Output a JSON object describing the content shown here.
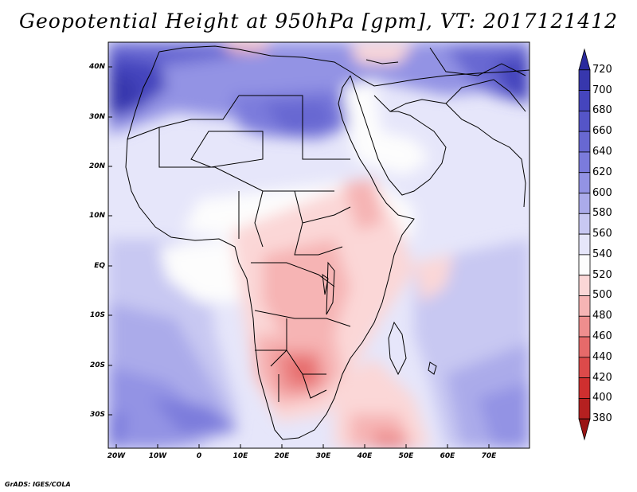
{
  "title": "Geopotential Height at 950hPa [gpm], VT: 2017121412",
  "map": {
    "region": "Africa and Middle East",
    "lat_labels": [
      "40N",
      "30N",
      "20N",
      "10N",
      "EQ",
      "10S",
      "20S",
      "30S"
    ],
    "lon_labels": [
      "20W",
      "10W",
      "0",
      "10E",
      "20E",
      "30E",
      "40E",
      "50E",
      "60E",
      "70E"
    ]
  },
  "colorbar": {
    "levels": [
      "720",
      "700",
      "680",
      "660",
      "640",
      "620",
      "600",
      "580",
      "560",
      "540",
      "520",
      "500",
      "480",
      "460",
      "440",
      "420",
      "400",
      "380"
    ],
    "colors": [
      "#2a2a9e",
      "#3737ad",
      "#4545bd",
      "#5555c8",
      "#6868d2",
      "#7b7bdc",
      "#9393e4",
      "#ababea",
      "#c8c8f2",
      "#e6e6fa",
      "#fdfdfd",
      "#fbd7d7",
      "#f6b4b4",
      "#ee8e8e",
      "#e66a6a",
      "#dc4a4a",
      "#cf2f2f",
      "#b52020",
      "#9a1414"
    ]
  },
  "footer": "GrADS: IGES/COLA"
}
